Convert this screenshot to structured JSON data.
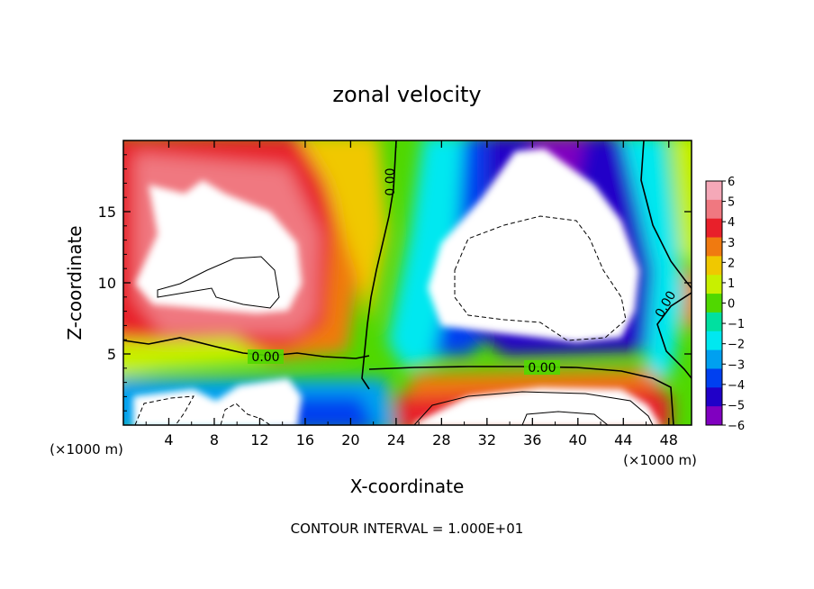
{
  "chart_data": {
    "type": "heatmap",
    "title": "zonal velocity",
    "xlabel": "X-coordinate",
    "ylabel": "Z-coordinate",
    "x_unit_note_left": "(×1000 m)",
    "x_unit_note_right": "(×1000 m)",
    "xlim": [
      0,
      50
    ],
    "ylim": [
      0,
      20
    ],
    "x_ticks": [
      4,
      8,
      12,
      16,
      20,
      24,
      28,
      32,
      36,
      40,
      44,
      48
    ],
    "y_ticks": [
      5,
      10,
      15
    ],
    "colorbar": {
      "labels": [
        "6",
        "5",
        "4",
        "3",
        "2",
        "1",
        "0",
        "−1",
        "−2",
        "−3",
        "−4",
        "−5",
        "−6"
      ],
      "colors": [
        "#f5a8b8",
        "#f07880",
        "#e8202a",
        "#f07a10",
        "#f0c800",
        "#c8f000",
        "#50d800",
        "#00e0a0",
        "#00e8f0",
        "#00a0f0",
        "#0040f0",
        "#2000c8",
        "#8000c0"
      ]
    },
    "contour_labels": [
      "0.00",
      "0.00",
      "0.00",
      "0.00"
    ],
    "footer": "CONTOUR INTERVAL = 1.000E+01"
  }
}
